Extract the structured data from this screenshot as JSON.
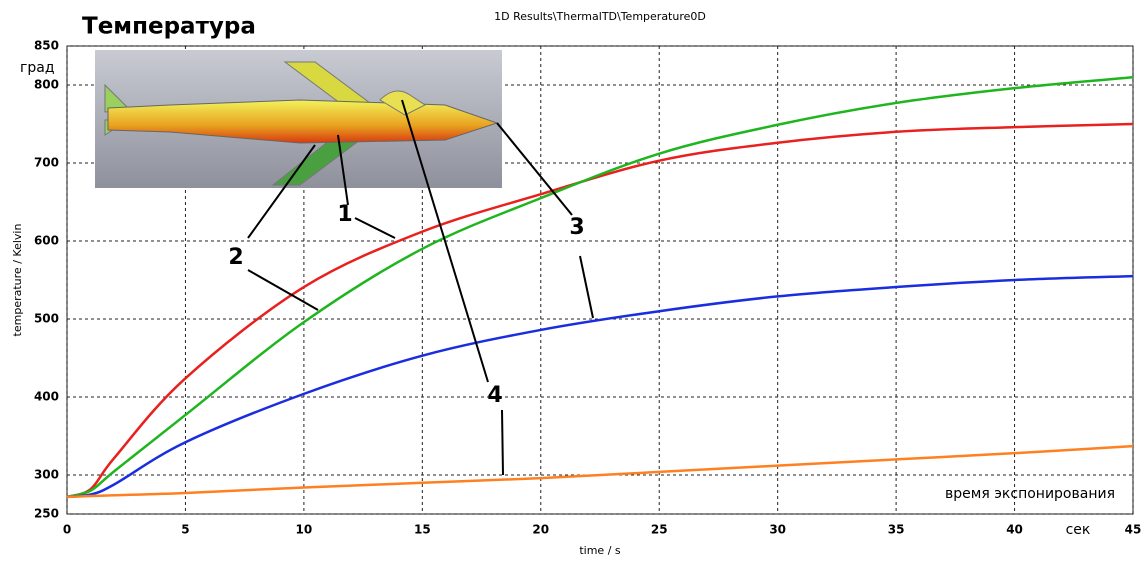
{
  "chart_data": {
    "type": "line",
    "title": "Температура",
    "subtitle": "1D Results\\ThermalTD\\Temperature0D",
    "y_unit_label": "град",
    "y_axis_label": "temperature / Kelvin",
    "x_axis_label": "time / s",
    "x_caption": "время экспонирования",
    "x_unit_label": "сек",
    "annotations": [
      "1",
      "2",
      "3",
      "4"
    ],
    "x": [
      0,
      1,
      2,
      5,
      10,
      15,
      20,
      25,
      30,
      35,
      40,
      45
    ],
    "series": [
      {
        "color": "#e8201e",
        "values": [
          272,
          282,
          322,
          424,
          541,
          612,
          660,
          703,
          726,
          740,
          746,
          750
        ]
      },
      {
        "color": "#1fb51f",
        "values": [
          272,
          280,
          305,
          377,
          496,
          590,
          655,
          712,
          749,
          777,
          796,
          810
        ]
      },
      {
        "color": "#1a2ee0",
        "values": [
          272,
          275,
          288,
          342,
          404,
          453,
          486,
          510,
          529,
          541,
          550,
          555
        ]
      },
      {
        "color": "#ff8020",
        "values": [
          272,
          273,
          274,
          277,
          284,
          290,
          296,
          304,
          312,
          320,
          328,
          337
        ]
      }
    ],
    "xlim": [
      0,
      45
    ],
    "ylim": [
      250,
      850
    ],
    "xticks": [
      0,
      5,
      10,
      15,
      20,
      25,
      30,
      35,
      40,
      45
    ],
    "yticks": [
      250,
      300,
      400,
      500,
      600,
      700,
      800,
      850
    ],
    "grid": true
  }
}
